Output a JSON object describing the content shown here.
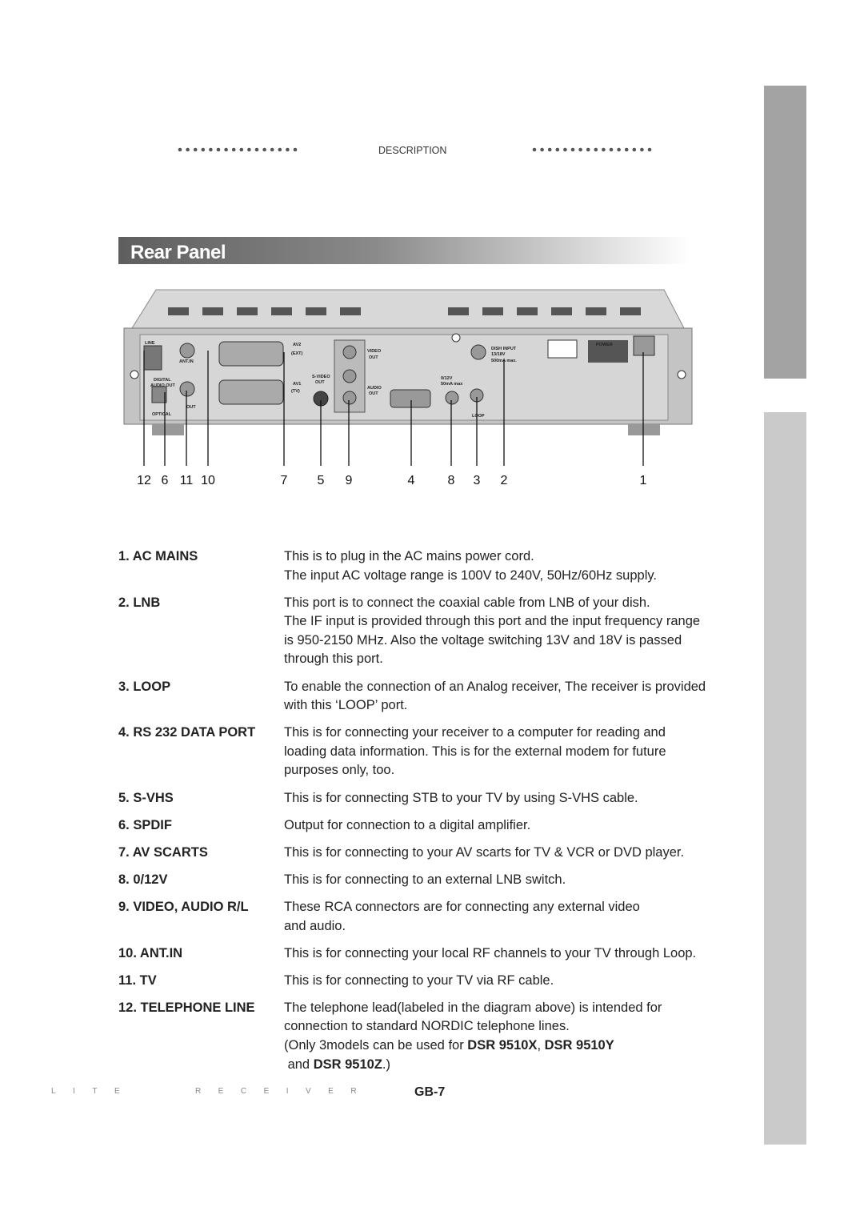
{
  "header": {
    "section": "DESCRIPTION"
  },
  "title": "Rear Panel",
  "diagram": {
    "panel_labels": [
      "LINE",
      "ANT.IN",
      "DIGITAL",
      "AUDIO OUT",
      "OPTICAL",
      "OUT",
      "AV2",
      "(EXT)",
      "AV1",
      "(TV)",
      "S-VIDEO",
      "OUT",
      "VIDEO",
      "OUT",
      "AUDIO",
      "OUT",
      "DISH INPUT",
      "13/18V",
      "500mA max.",
      "0/12V",
      "50mA max",
      "LOOP",
      "POWER"
    ],
    "callouts": [
      "12",
      "6",
      "11",
      "10",
      "7",
      "5",
      "9",
      "4",
      "8",
      "3",
      "2",
      "1"
    ]
  },
  "items": [
    {
      "term": "1. AC MAINS",
      "lines": [
        "This is to plug in the AC mains power cord.",
        "The input AC voltage range is 100V to 240V, 50Hz/60Hz supply."
      ]
    },
    {
      "term": "2. LNB",
      "lines": [
        "This port is to connect the coaxial cable from LNB of your dish.",
        "The IF input is provided through this port and the input frequency range",
        "is 950-2150 MHz. Also the voltage switching 13V and 18V is passed",
        "through this port."
      ]
    },
    {
      "term": "3. LOOP",
      "lines": [
        "To enable the connection of an Analog receiver, The receiver is provided",
        "with this ‘LOOP’ port."
      ]
    },
    {
      "term": "4. RS 232 DATA PORT",
      "lines": [
        "This is for connecting your receiver to a computer for reading and",
        "loading data information. This is for the external modem for future",
        "purposes only, too."
      ]
    },
    {
      "term": "5. S-VHS",
      "lines": [
        "This is for connecting STB to your TV by using S-VHS cable."
      ]
    },
    {
      "term": "6. SPDIF",
      "lines": [
        "Output for connection to a digital amplifier."
      ]
    },
    {
      "term": "7. AV SCARTS",
      "lines": [
        "This is for connecting to your AV scarts for TV & VCR or DVD player."
      ]
    },
    {
      "term": "8. 0/12V",
      "lines": [
        "This is for connecting to an external LNB switch."
      ]
    },
    {
      "term": "9. VIDEO, AUDIO R/L",
      "lines": [
        "These RCA connectors are for connecting any external video",
        "and audio."
      ]
    },
    {
      "term": "10. ANT.IN",
      "lines": [
        "This is for connecting your local RF channels to your TV through Loop."
      ]
    },
    {
      "term": "11. TV",
      "lines": [
        "This is for connecting to your TV via RF cable."
      ]
    },
    {
      "term": "12. TELEPHONE LINE",
      "lines": [
        "The telephone lead(labeled in the diagram above) is intended for",
        "connection to standard NORDIC telephone lines."
      ],
      "note": [
        [
          {
            "text": "(Only 3models can be used for ",
            "bold": false
          },
          {
            "text": "DSR 9510X",
            "bold": true
          },
          {
            "text": ", ",
            "bold": false
          },
          {
            "text": "DSR 9510Y",
            "bold": true
          }
        ],
        [
          {
            "text": " and ",
            "bold": false
          },
          {
            "text": "DSR 9510Z",
            "bold": true
          },
          {
            "text": ".)",
            "bold": false
          }
        ]
      ]
    }
  ],
  "footer": {
    "brand": "LITE   RECEIVER",
    "page": "GB-7"
  }
}
